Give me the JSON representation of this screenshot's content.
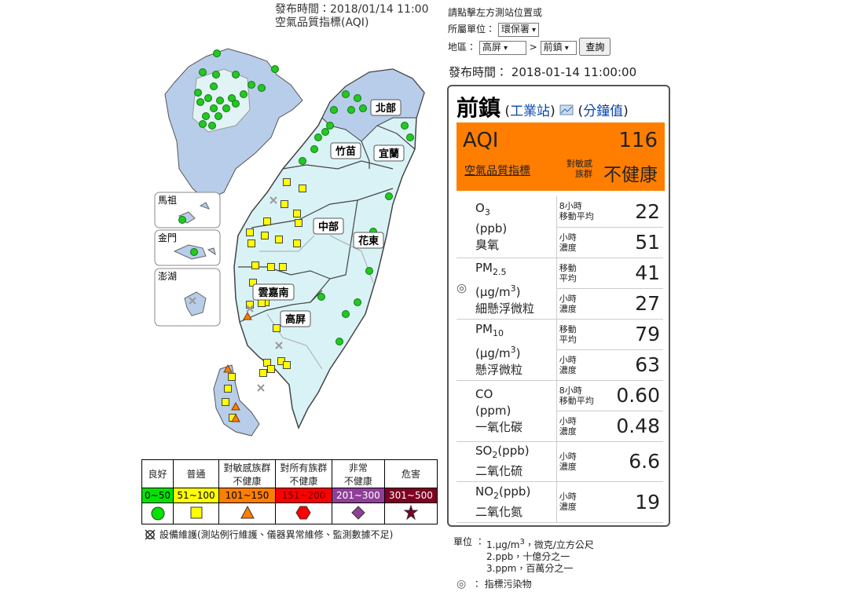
{
  "header": {
    "publish_time": "發布時間：2018/01/14 11:00",
    "index_name": "空氣品質指標(AQI)"
  },
  "map": {
    "regions": [
      "北部",
      "竹苗",
      "宜蘭",
      "中部",
      "花東",
      "雲嘉南",
      "高屏"
    ],
    "islands": [
      "馬祖",
      "金門",
      "澎湖"
    ]
  },
  "legend": {
    "columns": [
      {
        "label": [
          "良好"
        ],
        "range": "0~50",
        "color": "#00e400"
      },
      {
        "label": [
          "普通"
        ],
        "range": "51~100",
        "color": "#ffff00"
      },
      {
        "label": [
          "對敏感族群",
          "不健康"
        ],
        "range": "101~150",
        "color": "#ff7e00"
      },
      {
        "label": [
          "對所有族群",
          "不健康"
        ],
        "range": "151~200",
        "color": "#ff0000"
      },
      {
        "label": [
          "非常",
          "不健康"
        ],
        "range": "201~300",
        "color": "#8f3f97"
      },
      {
        "label": [
          "危害"
        ],
        "range": "301~500",
        "color": "#7e0023"
      }
    ],
    "maintenance_note": "設備維護(測站例行維護、儀器異常維修、監測數據不足)"
  },
  "controls": {
    "instruction": "請點擊左方測站位置或",
    "unit_label": "所屬單位：",
    "unit_value": "環保署",
    "area_label": "地區：",
    "area_value": "高屏",
    "separator": ">",
    "station_value": "前鎮",
    "query_button": "查詢"
  },
  "publish_time": {
    "label": "發布時間：",
    "value": "2018-01-14 11:00:00"
  },
  "station": {
    "name": "前鎮",
    "type_link": "工業站",
    "minute_link": "分鐘值",
    "aqi_label": "AQI",
    "aqi_value": 116,
    "aqi_full_name": "空氣品質指標",
    "status_group": [
      "對敏感",
      "族群"
    ],
    "status": "不健康"
  },
  "pollutants": [
    {
      "symbol": "O",
      "subscript": "3",
      "unit": "(ppb)",
      "name": "臭氧",
      "readings": [
        {
          "label": [
            "8小時",
            "移動平均"
          ],
          "value": 22
        },
        {
          "label": [
            "小時",
            "濃度"
          ],
          "value": 51
        }
      ]
    },
    {
      "symbol": "PM",
      "subscript": "2.5",
      "unit": "(μg/m",
      "unit_sup": "3",
      "unit_end": ")",
      "name": "細懸浮微粒",
      "indicator": "◎",
      "readings": [
        {
          "label": [
            "移動",
            "平均"
          ],
          "value": 41
        },
        {
          "label": [
            "小時",
            "濃度"
          ],
          "value": 27
        }
      ]
    },
    {
      "symbol": "PM",
      "subscript": "10",
      "unit": "(μg/m",
      "unit_sup": "3",
      "unit_end": ")",
      "name": "懸浮微粒",
      "readings": [
        {
          "label": [
            "移動",
            "平均"
          ],
          "value": 79
        },
        {
          "label": [
            "小時",
            "濃度"
          ],
          "value": 63
        }
      ]
    },
    {
      "symbol": "CO",
      "unit": "(ppm)",
      "name": "一氧化碳",
      "readings": [
        {
          "label": [
            "8小時",
            "移動平均"
          ],
          "value": "0.60"
        },
        {
          "label": [
            "小時",
            "濃度"
          ],
          "value": "0.48"
        }
      ]
    },
    {
      "symbol": "SO",
      "subscript": "2",
      "unit": "(ppb)",
      "name": "二氧化硫",
      "readings": [
        {
          "label": [
            "小時",
            "濃度"
          ],
          "value": 6.6
        }
      ]
    },
    {
      "symbol": "NO",
      "subscript": "2",
      "unit": "(ppb)",
      "name": "二氧化氮",
      "readings": [
        {
          "label": [
            "小時",
            "濃度"
          ],
          "value": 19
        }
      ]
    }
  ],
  "footnote": {
    "unit_label": "單位 ：",
    "item1_text": "1.μg/m",
    "item1_sup": "3",
    "item1_rest": "，微克/立方公尺",
    "item2": "2.ppb，十億分之一",
    "item3": "3.ppm，百萬分之一",
    "indicator_symbol": "◎",
    "indicator_text": "：  指標污染物"
  }
}
